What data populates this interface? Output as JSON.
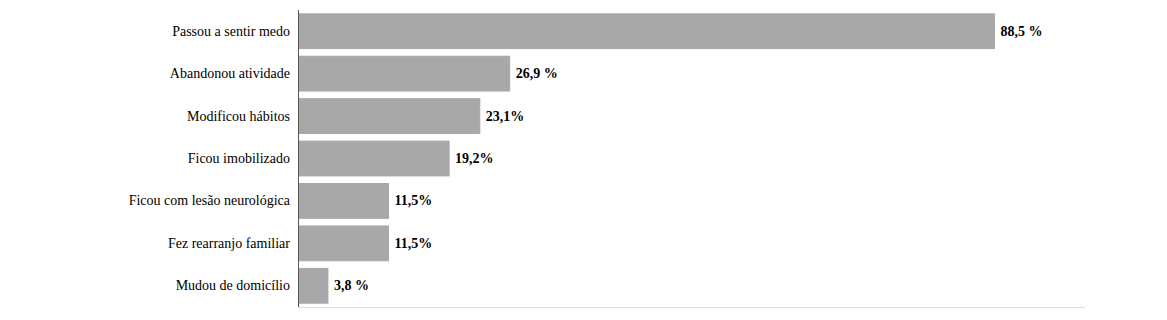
{
  "chart_data": {
    "type": "bar",
    "orientation": "horizontal",
    "categories": [
      "Mudou de domicílio",
      "Fez rearranjo familiar",
      "Ficou com lesão neurológica",
      "Ficou imobilizado",
      "Modificou hábitos",
      "Abandonou atividade",
      "Passou a sentir medo"
    ],
    "values": [
      3.8,
      11.5,
      11.5,
      19.2,
      23.1,
      26.9,
      88.5
    ],
    "value_labels": [
      "3,8 %",
      "11,5%",
      "11,5%",
      "19,2%",
      "23,1%",
      "26,9 %",
      "88,5 %"
    ],
    "color": "#a8a8a8",
    "xlim": [
      0,
      100
    ],
    "data_labels": true,
    "tick_labels": "y",
    "grid": false
  }
}
